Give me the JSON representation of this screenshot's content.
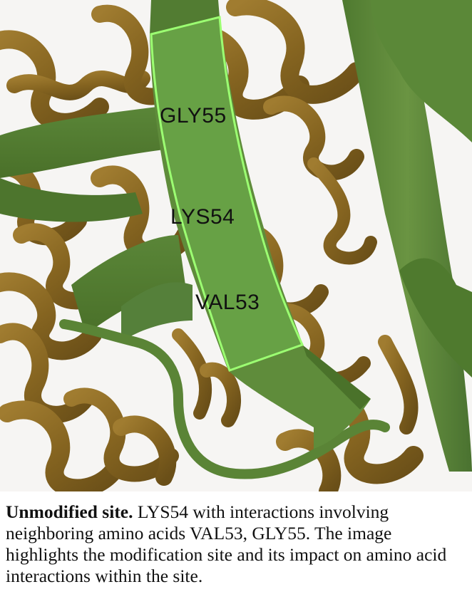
{
  "figure": {
    "labels": {
      "gly": "GLY55",
      "lys": "LYS54",
      "val": "VAL53"
    },
    "colors": {
      "background": "#f6f5f3",
      "helix_brown": "#8b6a26",
      "sheet_green": "#5e8a3a",
      "highlight": "#9cff72"
    }
  },
  "caption": {
    "title": "Unmodified site.",
    "body": " LYS54 with interactions involving neighboring amino acids VAL53, GLY55. The image highlights the modification site and its impact on amino acid interactions within the site."
  }
}
